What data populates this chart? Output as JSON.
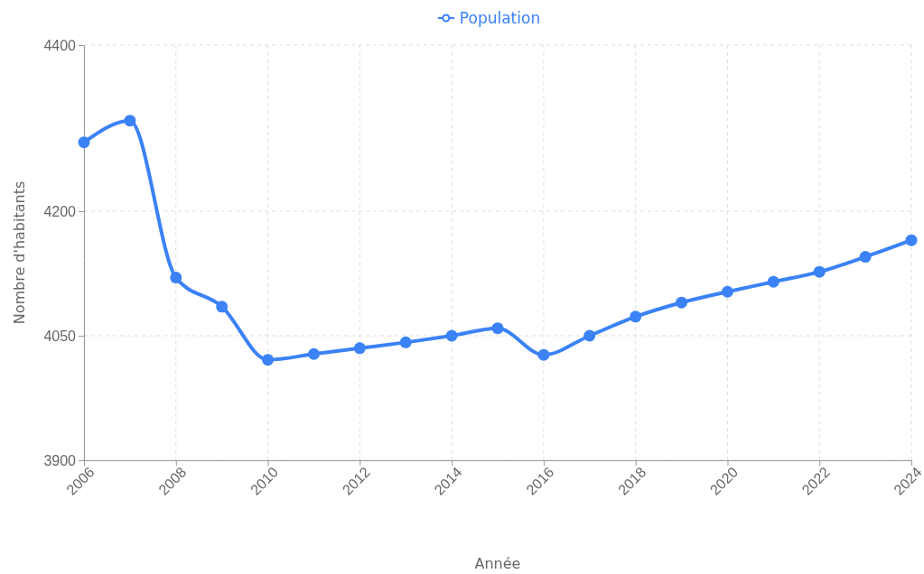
{
  "chart_data": {
    "type": "line",
    "xlabel": "Année",
    "ylabel": "Nombre d'habitants",
    "x": [
      2006,
      2007,
      2008,
      2009,
      2010,
      2011,
      2012,
      2013,
      2014,
      2015,
      2016,
      2017,
      2018,
      2019,
      2020,
      2021,
      2022,
      2023,
      2024
    ],
    "series": [
      {
        "name": "Population",
        "color": "#3b82f6",
        "values": [
          4283,
          4309,
          4120,
          4085,
          4021,
          4028,
          4035,
          4042,
          4050,
          4059,
          4027,
          4050,
          4073,
          4090,
          4103,
          4115,
          4127,
          4145,
          4165
        ]
      }
    ],
    "xlim": [
      2006,
      2024
    ],
    "xticks": [
      2006,
      2008,
      2010,
      2012,
      2014,
      2016,
      2018,
      2020,
      2022,
      2024
    ],
    "ylim": [
      3900,
      4400
    ],
    "yticks": [
      3900,
      4050,
      4200,
      4400
    ],
    "grid": true,
    "legend": "top",
    "marker": "circle",
    "line_style": "solid"
  }
}
